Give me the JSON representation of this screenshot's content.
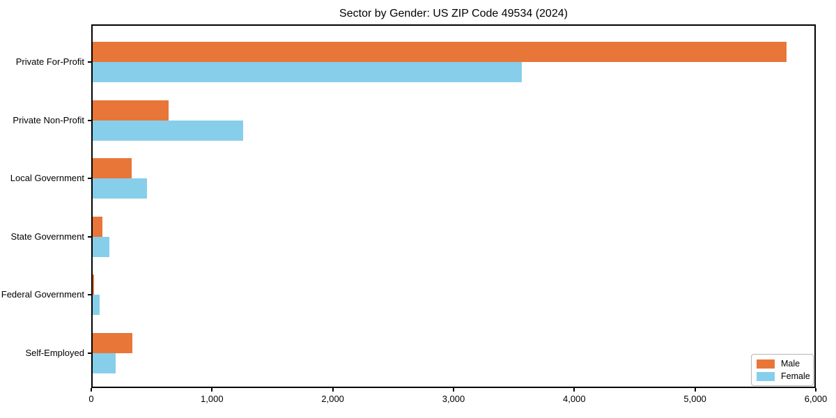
{
  "title": "Sector by Gender: US ZIP Code 49534 (2024)",
  "colors": {
    "male": "#e87639",
    "female": "#87ceeb",
    "axis": "#000000",
    "background": "#ffffff",
    "legend_border": "#b5b5b5"
  },
  "chart_data": {
    "type": "bar",
    "orientation": "horizontal",
    "title": "Sector by Gender: US ZIP Code 49534 (2024)",
    "categories": [
      "Private For-Profit",
      "Private Non-Profit",
      "Local Government",
      "State Government",
      "Federal Government",
      "Self-Employed"
    ],
    "series": [
      {
        "name": "Male",
        "color": "#e87639",
        "values": [
          5756,
          639,
          336,
          92,
          23,
          339
        ]
      },
      {
        "name": "Female",
        "color": "#87ceeb",
        "values": [
          3567,
          1260,
          460,
          148,
          69,
          204
        ]
      }
    ],
    "xlabel": "",
    "ylabel": "",
    "xlim": [
      0,
      6000
    ],
    "xticks": [
      0,
      1000,
      2000,
      3000,
      4000,
      5000,
      6000
    ],
    "xtick_labels": [
      "0",
      "1,000",
      "2,000",
      "3,000",
      "4,000",
      "5,000",
      "6,000"
    ],
    "grid": false,
    "legend_position": "lower right"
  },
  "legend": {
    "male_label": "Male",
    "female_label": "Female"
  }
}
